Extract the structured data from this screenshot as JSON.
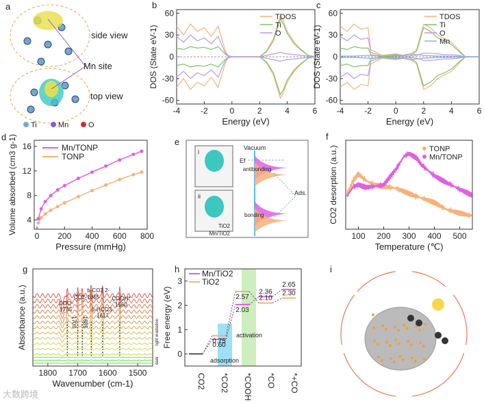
{
  "panel_labels": [
    "a",
    "b",
    "c",
    "d",
    "e",
    "f",
    "g",
    "h",
    "i"
  ],
  "colors": {
    "mn": "#e060e0",
    "ti": "#f5b27a",
    "tdos": "#f5b27a",
    "ti_green": "#7cc26a",
    "o": "#b99be0",
    "mn_blue": "#8fb0e0"
  },
  "panel_a": {
    "side": "side view",
    "site": "Mn site",
    "top": "top view",
    "legend": [
      "Ti",
      "Mn",
      "O"
    ]
  },
  "panel_e": {
    "vacuum": "Vacuum",
    "ef": "Ef",
    "antibonding": "antibonding",
    "bonding": "bonding",
    "ads": "Ads.",
    "inset_i": "i",
    "inset_ii": "ii",
    "tio2": "TiO2",
    "mntio2": "Mn/TiO2"
  },
  "panel_g": {
    "annotations": [
      {
        "t": "COO-",
        "v": "1735"
      },
      {
        "t": "1700",
        "v": ""
      },
      {
        "t": "CO2-",
        "v": ""
      },
      {
        "t": "1685",
        "v": ""
      },
      {
        "t": "b-CO3 2-",
        "v": "1655"
      },
      {
        "t": "b-HCO3-",
        "v": "1617"
      },
      {
        "t": "COOH*",
        "v": "1560"
      }
    ],
    "side_light": "light irradiation",
    "side_dark": "dark"
  },
  "panel_h": {
    "adsorption": "adsorption",
    "activation": "activation"
  },
  "watermark": "大数跨境",
  "chart_data": [
    {
      "id": "b",
      "type": "line",
      "xlabel": "Energy (eV)",
      "ylabel": "DOS (State eV-1)",
      "xlim": [
        -4,
        6
      ],
      "ylim": [
        -65,
        65
      ],
      "xticks": [
        -4,
        -2,
        0,
        2,
        4,
        6
      ],
      "yticks": [
        -60,
        -30,
        0,
        30,
        60
      ],
      "legend": "top-right",
      "series": [
        {
          "name": "TDOS",
          "x": [
            -4,
            -3.5,
            -3,
            -2.5,
            -2,
            -1.5,
            -1,
            -0.5,
            -0.3,
            0,
            2,
            2.5,
            3,
            3.5,
            3.7,
            4,
            4.5,
            5,
            5.5,
            6
          ],
          "y": [
            42,
            30,
            45,
            35,
            40,
            28,
            42,
            10,
            2,
            0,
            0,
            8,
            25,
            57,
            50,
            35,
            20,
            10,
            2,
            0
          ]
        },
        {
          "name": "Ti",
          "x": [
            -4,
            -3.5,
            -3,
            -2.5,
            -2,
            -1.5,
            -1,
            -0.5,
            -0.3,
            0,
            2,
            2.5,
            3,
            3.5,
            3.7,
            4,
            4.5,
            5,
            5.5,
            6
          ],
          "y": [
            12,
            10,
            14,
            12,
            13,
            10,
            14,
            4,
            1,
            0,
            0,
            7,
            22,
            52,
            46,
            32,
            18,
            9,
            2,
            0
          ]
        },
        {
          "name": "O",
          "x": [
            -4,
            -3.5,
            -3,
            -2.5,
            -2,
            -1.5,
            -1,
            -0.5,
            -0.3,
            0,
            2,
            2.5,
            3,
            3.5,
            3.7,
            4,
            4.5,
            5,
            5.5,
            6
          ],
          "y": [
            28,
            20,
            30,
            22,
            26,
            18,
            28,
            6,
            1,
            0,
            0,
            2,
            4,
            6,
            5,
            4,
            3,
            2,
            1,
            0
          ]
        }
      ]
    },
    {
      "id": "c",
      "type": "line",
      "xlabel": "Energy (eV)",
      "ylabel": "DOS (State eV-1)",
      "xlim": [
        -4,
        6
      ],
      "ylim": [
        -65,
        65
      ],
      "xticks": [
        -4,
        -2,
        0,
        2,
        4,
        6
      ],
      "yticks": [
        -60,
        -30,
        0,
        30,
        60
      ],
      "legend": "top-right",
      "series": [
        {
          "name": "TDOS",
          "x": [
            -4,
            -3.5,
            -3,
            -2.5,
            -2,
            -1.8,
            -1,
            0,
            0.5,
            1,
            1.5,
            2,
            2.5,
            3,
            3.5,
            4,
            4.5,
            5,
            6
          ],
          "y": [
            42,
            35,
            45,
            38,
            40,
            10,
            2,
            4,
            2,
            3,
            10,
            45,
            40,
            30,
            25,
            20,
            10,
            0,
            0
          ]
        },
        {
          "name": "Ti",
          "x": [
            -4,
            -3.5,
            -3,
            -2.5,
            -2,
            -1.8,
            -1,
            0,
            0.5,
            1,
            1.5,
            2,
            2.5,
            3,
            3.5,
            4,
            4.5,
            5,
            6
          ],
          "y": [
            12,
            10,
            14,
            12,
            12,
            3,
            0,
            1,
            1,
            1,
            8,
            40,
            35,
            26,
            22,
            17,
            8,
            0,
            0
          ]
        },
        {
          "name": "O",
          "x": [
            -4,
            -3.5,
            -3,
            -2.5,
            -2,
            -1.8,
            -1,
            0,
            0.5,
            1,
            1.5,
            2,
            2.5,
            3,
            3.5,
            4,
            4.5,
            5,
            6
          ],
          "y": [
            28,
            22,
            30,
            24,
            26,
            6,
            1,
            2,
            1,
            1,
            2,
            5,
            5,
            4,
            3,
            3,
            2,
            0,
            0
          ]
        },
        {
          "name": "Mn",
          "x": [
            -4,
            -3,
            -2,
            -1,
            0,
            0.5,
            1,
            1.5,
            2,
            3,
            4,
            5,
            6
          ],
          "y": [
            1,
            1,
            2,
            1,
            3,
            2,
            4,
            3,
            2,
            1,
            1,
            0,
            0
          ]
        }
      ]
    },
    {
      "id": "d",
      "type": "line",
      "xlabel": "Pressure (mmHg)",
      "ylabel": "Volume absorbed (cm3 g-1)",
      "xlim": [
        -20,
        800
      ],
      "ylim": [
        2.5,
        17
      ],
      "xticks": [
        0,
        200,
        400,
        600,
        800
      ],
      "yticks": [
        4,
        8,
        12,
        16
      ],
      "legend": "top-left",
      "series": [
        {
          "name": "Mn/TONP",
          "x": [
            10,
            30,
            60,
            100,
            150,
            200,
            300,
            400,
            500,
            600,
            700,
            760
          ],
          "y": [
            4.2,
            5.8,
            7,
            8,
            8.9,
            9.6,
            10.8,
            11.8,
            12.8,
            13.8,
            14.7,
            15.2
          ]
        },
        {
          "name": "TONP",
          "x": [
            10,
            30,
            60,
            100,
            150,
            200,
            300,
            400,
            500,
            600,
            700,
            760
          ],
          "y": [
            3.5,
            4.4,
            5,
            5.6,
            6.2,
            6.8,
            7.8,
            8.8,
            9.7,
            10.6,
            11.4,
            11.8
          ]
        }
      ]
    },
    {
      "id": "f",
      "type": "scatter",
      "xlabel": "Temperature (℃)",
      "ylabel": "CO2 desorption (a.u.)",
      "xlim": [
        50,
        550
      ],
      "ylim": [
        0,
        1
      ],
      "xticks": [
        100,
        200,
        300,
        400,
        500
      ],
      "legend": "top-right",
      "series": [
        {
          "name": "TONP",
          "x": [
            50,
            80,
            100,
            130,
            160,
            200,
            250,
            300,
            350,
            400,
            450,
            500,
            550
          ],
          "y": [
            0.35,
            0.55,
            0.62,
            0.55,
            0.5,
            0.48,
            0.46,
            0.4,
            0.35,
            0.3,
            0.22,
            0.18,
            0.15
          ]
        },
        {
          "name": "Mn/TONP",
          "x": [
            50,
            80,
            100,
            130,
            160,
            200,
            250,
            280,
            300,
            330,
            350,
            400,
            450,
            500,
            550
          ],
          "y": [
            0.35,
            0.48,
            0.5,
            0.47,
            0.48,
            0.5,
            0.68,
            0.82,
            0.85,
            0.8,
            0.72,
            0.6,
            0.52,
            0.45,
            0.38
          ]
        }
      ]
    },
    {
      "id": "g",
      "type": "line",
      "xlabel": "Wavenumber (cm-1)",
      "ylabel": "Absorbance (a.u.)",
      "xlim": [
        1850,
        1450
      ],
      "xticks": [
        1800,
        1700,
        1600,
        1500
      ],
      "peaks": [
        1735,
        1700,
        1685,
        1655,
        1617,
        1560
      ],
      "n_light": 12,
      "n_dark": 3
    },
    {
      "id": "h",
      "type": "line",
      "xlabel": "",
      "ylabel": "Free energy (eV)",
      "ylim": [
        -0.5,
        3.5
      ],
      "yticks": [
        0,
        1,
        2,
        3
      ],
      "categories": [
        "CO2",
        "*CO2",
        "*COOH",
        "*CO",
        "*+CO"
      ],
      "legend": "top-left",
      "series": [
        {
          "name": "Mn/TiO2",
          "values": [
            0,
            0.6,
            2.03,
            2.36,
            2.65
          ],
          "labels": [
            "",
            "0.60",
            "2.03",
            "2.36",
            "2.65"
          ]
        },
        {
          "name": "TiO2",
          "values": [
            0,
            0.75,
            2.57,
            2.1,
            2.3
          ],
          "labels": [
            "",
            "0.75",
            "2.57",
            "2.10",
            "2.30"
          ]
        }
      ]
    }
  ]
}
